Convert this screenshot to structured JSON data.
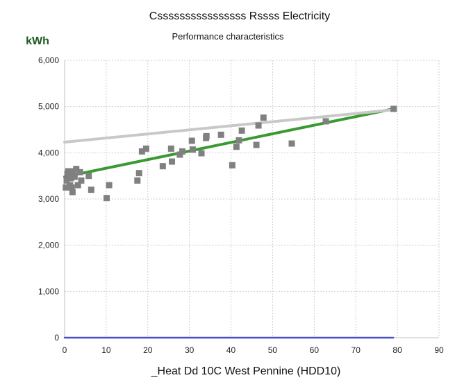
{
  "chart_data": {
    "type": "scatter",
    "title": "Cssssssssssssssss Rssss Electricity",
    "subtitle": "Performance characteristics",
    "xlabel": "_Heat Dd 10C West Pennine (HDD10)",
    "ylabel": "kWh",
    "xlim": [
      0,
      90
    ],
    "ylim": [
      0,
      6000
    ],
    "x_ticks": [
      0,
      10,
      20,
      30,
      40,
      50,
      60,
      70,
      80,
      90
    ],
    "y_ticks": [
      0,
      1000,
      2000,
      3000,
      4000,
      5000,
      6000
    ],
    "x_tick_labels": [
      "0",
      "10",
      "20",
      "30",
      "40",
      "50",
      "60",
      "70",
      "80",
      "90"
    ],
    "y_tick_labels": [
      "0",
      "1,000",
      "2,000",
      "3,000",
      "4,000",
      "5,000",
      "6,000"
    ],
    "grid": true,
    "series": [
      {
        "kind": "scatter",
        "color": "#808080",
        "points": [
          [
            0.3,
            3250
          ],
          [
            0.5,
            3400
          ],
          [
            0.7,
            3550
          ],
          [
            0.9,
            3600
          ],
          [
            1.1,
            3520
          ],
          [
            1.3,
            3300
          ],
          [
            1.5,
            3450
          ],
          [
            1.7,
            3250
          ],
          [
            1.9,
            3150
          ],
          [
            2.1,
            3600
          ],
          [
            2.4,
            3480
          ],
          [
            2.8,
            3650
          ],
          [
            3.2,
            3300
          ],
          [
            3.7,
            3580
          ],
          [
            4.0,
            3400
          ],
          [
            5.8,
            3500
          ],
          [
            6.4,
            3200
          ],
          [
            10.1,
            3020
          ],
          [
            10.7,
            3300
          ],
          [
            17.5,
            3400
          ],
          [
            17.9,
            3560
          ],
          [
            18.6,
            4030
          ],
          [
            19.6,
            4090
          ],
          [
            23.6,
            3710
          ],
          [
            25.6,
            4090
          ],
          [
            25.8,
            3810
          ],
          [
            27.7,
            3960
          ],
          [
            28.3,
            4030
          ],
          [
            30.6,
            4260
          ],
          [
            30.8,
            4070
          ],
          [
            32.9,
            3990
          ],
          [
            34.0,
            4320
          ],
          [
            34.1,
            4360
          ],
          [
            37.6,
            4390
          ],
          [
            40.3,
            3730
          ],
          [
            41.3,
            4130
          ],
          [
            41.9,
            4270
          ],
          [
            42.6,
            4480
          ],
          [
            46.1,
            4170
          ],
          [
            46.6,
            4590
          ],
          [
            47.8,
            4760
          ],
          [
            54.6,
            4200
          ],
          [
            62.8,
            4680
          ],
          [
            79.1,
            4950
          ]
        ]
      },
      {
        "kind": "line",
        "color": "#3a9a32",
        "points": [
          [
            0,
            3480
          ],
          [
            79,
            4950
          ]
        ]
      },
      {
        "kind": "line",
        "color": "#c8c8c8",
        "points": [
          [
            0,
            4230
          ],
          [
            79,
            4930
          ]
        ]
      },
      {
        "kind": "line",
        "color": "#4a4ec9",
        "points": [
          [
            0,
            0
          ],
          [
            79,
            0
          ]
        ]
      }
    ]
  }
}
